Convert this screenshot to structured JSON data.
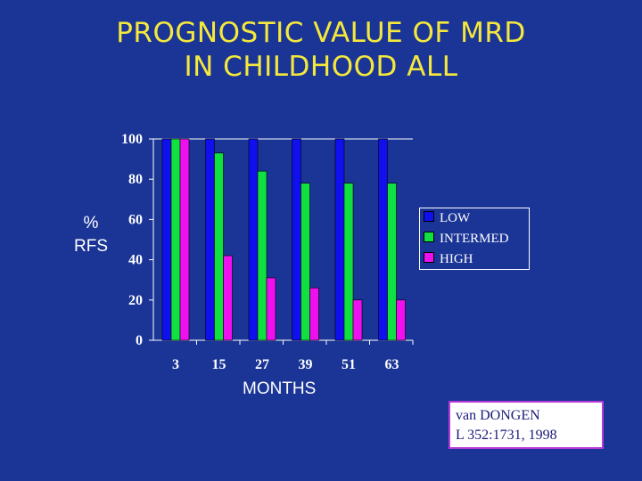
{
  "slide": {
    "title_line1": "PROGNOSTIC VALUE OF MRD",
    "title_line2": "IN CHILDHOOD ALL",
    "ylabel_line1": "%",
    "ylabel_line2": "RFS",
    "xlabel": "MONTHS",
    "citation_line1": "van DONGEN",
    "citation_line2": "L  352:1731, 1998"
  },
  "chart_data": {
    "type": "bar",
    "categories": [
      "3",
      "15",
      "27",
      "39",
      "51",
      "63"
    ],
    "series": [
      {
        "name": "LOW",
        "color": "#1010ee",
        "values": [
          100,
          100,
          100,
          100,
          100,
          100
        ]
      },
      {
        "name": "INTERMED",
        "color": "#10e040",
        "values": [
          100,
          93,
          84,
          78,
          78,
          78
        ]
      },
      {
        "name": "HIGH",
        "color": "#ee10ee",
        "values": [
          100,
          42,
          31,
          26,
          20,
          20
        ]
      }
    ],
    "ylim": [
      0,
      100
    ],
    "yticks": [
      0,
      20,
      40,
      60,
      80,
      100
    ],
    "xlabel": "MONTHS",
    "ylabel": "% RFS",
    "legend_position": "right",
    "grid": false
  }
}
